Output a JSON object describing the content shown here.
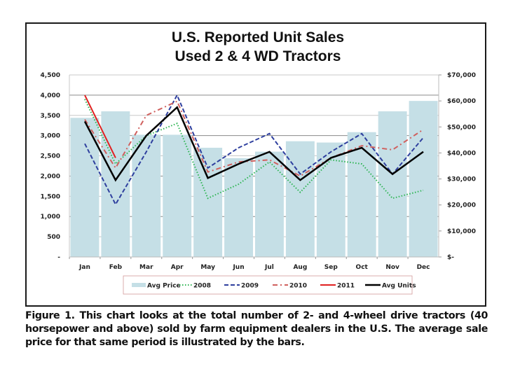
{
  "chart_data": {
    "type": "bar+line",
    "title_lines": [
      "U.S. Reported Unit Sales",
      "Used 2 & 4 WD Tractors"
    ],
    "categories": [
      "Jan",
      "Feb",
      "Mar",
      "Apr",
      "May",
      "Jun",
      "Jul",
      "Aug",
      "Sep",
      "Oct",
      "Nov",
      "Dec"
    ],
    "left_axis": {
      "ylim": [
        0,
        4500
      ],
      "tick_values": [
        0,
        500,
        1000,
        1500,
        2000,
        2500,
        3000,
        3500,
        4000,
        4500
      ],
      "tick_labels": [
        "-",
        "500",
        "1,000",
        "1,500",
        "2,000",
        "2,500",
        "3,000",
        "3,500",
        "4,000",
        "4,500"
      ]
    },
    "right_axis": {
      "ylim": [
        0,
        70000
      ],
      "tick_values": [
        0,
        10000,
        20000,
        30000,
        40000,
        50000,
        60000,
        70000
      ],
      "tick_labels": [
        "$-",
        "$10,000",
        "$20,000",
        "$30,000",
        "$40,000",
        "$50,000",
        "$60,000",
        "$70,000"
      ]
    },
    "bars": {
      "name": "Avg Price",
      "axis": "right",
      "color": "#c5dfe6",
      "values": [
        53500,
        56000,
        47000,
        47000,
        42000,
        38000,
        40500,
        44500,
        44000,
        48000,
        56000,
        60000
      ]
    },
    "series": [
      {
        "name": "2008",
        "style": "dotted",
        "color": "#2db552",
        "values": [
          3900,
          2300,
          3000,
          3300,
          1450,
          1800,
          2350,
          1600,
          2400,
          2300,
          1450,
          1650
        ]
      },
      {
        "name": "2009",
        "style": "dashed",
        "color": "#2e3f9e",
        "values": [
          2800,
          1300,
          2600,
          4000,
          2200,
          2700,
          3050,
          2050,
          2600,
          3050,
          2050,
          2950
        ]
      },
      {
        "name": "2010",
        "style": "dashdot",
        "color": "#d0605e",
        "values": [
          3400,
          2200,
          3500,
          3850,
          2100,
          2350,
          2400,
          2000,
          2450,
          2750,
          2650,
          3150
        ]
      },
      {
        "name": "2011",
        "style": "solid",
        "color": "#e02020",
        "values": [
          4000,
          2450,
          null,
          null,
          null,
          null,
          null,
          null,
          null,
          null,
          null,
          null
        ]
      },
      {
        "name": "Avg Units",
        "style": "solid-bold",
        "color": "#000000",
        "values": [
          3350,
          1900,
          3000,
          3700,
          1950,
          2300,
          2600,
          1900,
          2450,
          2700,
          2050,
          2600
        ]
      }
    ],
    "legend": [
      "Avg Price",
      "2008",
      "2009",
      "2010",
      "2011",
      "Avg Units"
    ],
    "legend_position": "bottom",
    "grid": true
  },
  "caption": "Figure 1. This chart looks at the total number of 2- and 4-wheel drive tractors (40 horsepower and above) sold by farm equipment dealers in the U.S. The average sale price for that same period is illustrated by the bars."
}
